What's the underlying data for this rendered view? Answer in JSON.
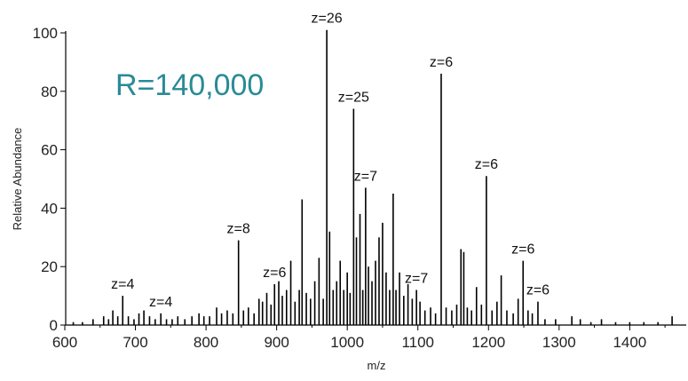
{
  "chart_data": {
    "type": "bar",
    "title": "",
    "xlabel": "m/z",
    "ylabel": "Relative Abundance",
    "xlim": [
      600,
      1480
    ],
    "ylim": [
      0,
      100
    ],
    "x_ticks": [
      600,
      700,
      800,
      900,
      1000,
      1100,
      1200,
      1300,
      1400
    ],
    "y_ticks": [
      0,
      20,
      40,
      60,
      80,
      100
    ],
    "grid": false,
    "colors": {
      "peaks": "#000000",
      "annotation": "#2a8a96"
    },
    "annotation": "R=140,000",
    "series": [
      {
        "x": [
          612,
          625,
          640,
          655,
          662,
          668,
          675,
          682,
          690,
          698,
          705,
          712,
          720,
          728,
          736,
          744,
          752,
          760,
          770,
          780,
          790,
          797,
          805,
          815,
          822,
          830,
          838,
          846,
          853,
          860,
          868,
          875,
          880,
          886,
          892,
          897,
          903,
          908,
          914,
          920,
          926,
          932,
          936,
          942,
          948,
          954,
          960,
          966,
          971,
          975,
          980,
          985,
          990,
          995,
          1000,
          1004,
          1009,
          1013,
          1018,
          1022,
          1026,
          1030,
          1035,
          1040,
          1045,
          1050,
          1055,
          1060,
          1065,
          1069,
          1074,
          1080,
          1086,
          1092,
          1098,
          1103,
          1110,
          1118,
          1125,
          1133,
          1140,
          1148,
          1155,
          1161,
          1165,
          1170,
          1176,
          1183,
          1190,
          1197,
          1205,
          1212,
          1218,
          1226,
          1235,
          1242,
          1249,
          1256,
          1262,
          1270,
          1280,
          1295,
          1318,
          1330,
          1345,
          1360,
          1380,
          1400,
          1420,
          1440,
          1460
        ],
        "values": [
          1,
          1,
          2,
          3,
          2,
          5,
          3,
          10,
          3,
          2,
          4,
          5,
          3,
          2,
          4,
          2,
          2,
          3,
          2,
          3,
          4,
          3,
          3,
          6,
          4,
          5,
          4,
          29,
          5,
          6,
          4,
          9,
          8,
          11,
          7,
          14,
          15,
          10,
          12,
          22,
          8,
          12,
          43,
          11,
          9,
          15,
          23,
          9,
          101,
          32,
          12,
          15,
          22,
          12,
          18,
          11,
          74,
          30,
          38,
          12,
          47,
          20,
          15,
          22,
          30,
          35,
          18,
          12,
          45,
          12,
          18,
          10,
          14,
          9,
          12,
          8,
          5,
          6,
          4,
          86,
          6,
          5,
          7,
          26,
          25,
          6,
          5,
          13,
          7,
          51,
          5,
          8,
          17,
          5,
          4,
          9,
          22,
          5,
          4,
          8,
          2,
          2,
          3,
          2,
          1,
          2,
          1,
          1,
          1,
          1,
          3
        ]
      }
    ],
    "labels": [
      {
        "text": "z=4",
        "x": 682,
        "y": 10
      },
      {
        "text": "z=4",
        "x": 736,
        "y": 4
      },
      {
        "text": "z=8",
        "x": 846,
        "y": 29
      },
      {
        "text": "z=6",
        "x": 897,
        "y": 14
      },
      {
        "text": "z=26",
        "x": 971,
        "y": 101
      },
      {
        "text": "z=25",
        "x": 1009,
        "y": 74
      },
      {
        "text": "z=7",
        "x": 1026,
        "y": 47
      },
      {
        "text": "z=7",
        "x": 1098,
        "y": 12
      },
      {
        "text": "z=6",
        "x": 1133,
        "y": 86
      },
      {
        "text": "z=6",
        "x": 1197,
        "y": 51
      },
      {
        "text": "z=6",
        "x": 1249,
        "y": 22
      },
      {
        "text": "z=6",
        "x": 1270,
        "y": 8
      }
    ]
  }
}
